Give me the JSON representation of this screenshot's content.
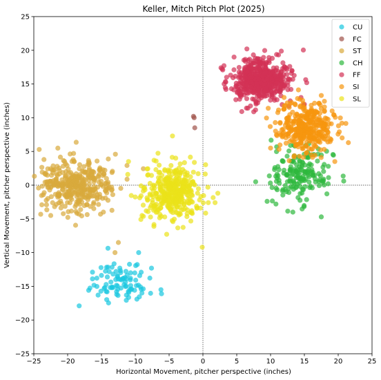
{
  "chart_data": {
    "type": "scatter",
    "title": "Keller, Mitch Pitch Plot (2025)",
    "xlabel": "Horizontal Movement, pitcher perspective (inches)",
    "ylabel": "Vertical Movement, pitcher perspective (inches)",
    "xlim": [
      -25,
      25
    ],
    "ylim": [
      -25,
      25
    ],
    "xticks": [
      -25,
      -20,
      -15,
      -10,
      -5,
      0,
      5,
      10,
      15,
      20,
      25
    ],
    "yticks": [
      -25,
      -20,
      -15,
      -10,
      -5,
      0,
      5,
      10,
      15,
      20,
      25
    ],
    "reference_lines": {
      "x": 0,
      "y": 0,
      "style": "dotted"
    },
    "grid": false,
    "legend_position": "top-right",
    "point_opacity": 0.7,
    "series": [
      {
        "name": "CU",
        "color": "#1ac8e0",
        "center": [
          -12.5,
          -14.5
        ],
        "spread": [
          2.0,
          1.6
        ],
        "count": 90,
        "points": [
          [
            -18.3,
            -17.9
          ],
          [
            -9.5,
            -10.0
          ],
          [
            -6.2,
            -15.5
          ],
          [
            -15.5,
            -16.3
          ]
        ]
      },
      {
        "name": "FC",
        "color": "#a0524a",
        "center": [
          -1.5,
          9.5
        ],
        "spread": [
          0.1,
          0.5
        ],
        "count": 0,
        "points": [
          [
            -1.4,
            10.2
          ],
          [
            -1.3,
            10.0
          ],
          [
            -1.2,
            8.5
          ]
        ]
      },
      {
        "name": "ST",
        "color": "#d8aa3c",
        "center": [
          -18.5,
          0.0
        ],
        "spread": [
          2.7,
          2.0
        ],
        "count": 380,
        "points": [
          [
            -24.2,
            5.3
          ],
          [
            -23.5,
            3.8
          ],
          [
            -12.5,
            -8.5
          ],
          [
            -13.0,
            -10.0
          ],
          [
            -22.5,
            -4.5
          ]
        ]
      },
      {
        "name": "CH",
        "color": "#2db83d",
        "center": [
          14.5,
          1.5
        ],
        "spread": [
          2.2,
          1.9
        ],
        "count": 180,
        "points": [
          [
            7.8,
            0.5
          ],
          [
            17.5,
            -4.7
          ],
          [
            13.3,
            -4.0
          ],
          [
            10.8,
            -2.8
          ]
        ]
      },
      {
        "name": "FF",
        "color": "#d33255",
        "center": [
          8.5,
          15.5
        ],
        "spread": [
          2.1,
          1.5
        ],
        "count": 560,
        "points": [
          [
            4.6,
            19.0
          ],
          [
            6.5,
            20.2
          ],
          [
            14.5,
            13.0
          ],
          [
            15.0,
            12.0
          ],
          [
            3.5,
            16.0
          ]
        ]
      },
      {
        "name": "SI",
        "color": "#f7950e",
        "center": [
          15.5,
          8.7
        ],
        "spread": [
          1.9,
          1.7
        ],
        "count": 360,
        "points": [
          [
            21.5,
            6.3
          ],
          [
            10.0,
            5.5
          ],
          [
            17.5,
            13.3
          ],
          [
            12.0,
            13.0
          ],
          [
            19.5,
            3.5
          ]
        ]
      },
      {
        "name": "SL",
        "color": "#ebe31a",
        "center": [
          -4.5,
          -1.0
        ],
        "spread": [
          2.1,
          2.0
        ],
        "count": 400,
        "points": [
          [
            -11.0,
            3.5
          ],
          [
            -4.5,
            7.3
          ],
          [
            -0.1,
            -9.2
          ],
          [
            2.2,
            -1.2
          ],
          [
            -9.0,
            -4.5
          ]
        ]
      }
    ]
  }
}
